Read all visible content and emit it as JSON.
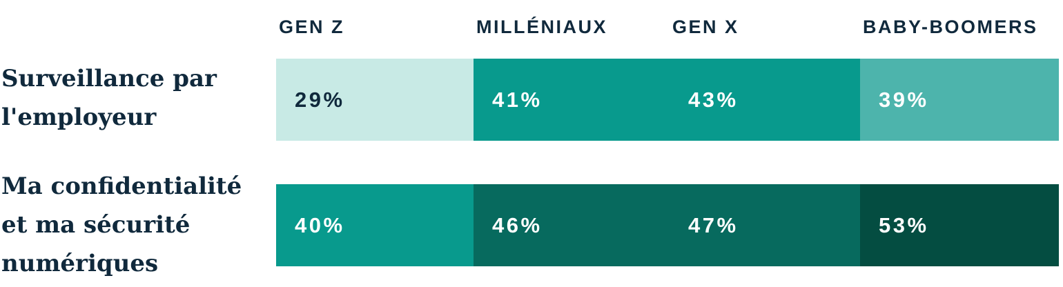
{
  "colors": {
    "background": "#ffffff",
    "text_navy": "#10293c",
    "mint": "#c8eae5",
    "teal": "#089a8d",
    "seafoam": "#4db4ac",
    "dark_teal": "#076a5e",
    "darkest_teal": "#044d41",
    "value_light": "#ffffff"
  },
  "header": {
    "columns": [
      "GEN Z",
      "MILLÉNIAUX",
      "GEN X",
      "BABY-BOOMERS"
    ]
  },
  "rows": [
    {
      "label": "Surveillance par l'employeur",
      "label_lines": [
        "Surveillance par",
        "l'employeur"
      ],
      "cells": [
        {
          "value": "29%",
          "bg": "#c8eae5",
          "fg": "#10293c"
        },
        {
          "value": "41%",
          "bg": "#089a8d",
          "fg": "#ffffff"
        },
        {
          "value": "43%",
          "bg": "#089a8d",
          "fg": "#ffffff"
        },
        {
          "value": "39%",
          "bg": "#4db4ac",
          "fg": "#ffffff"
        }
      ]
    },
    {
      "label": "Ma confidentialité et ma sécurité numériques",
      "label_lines": [
        "Ma confidentialité",
        "et ma sécurité",
        "numériques"
      ],
      "cells": [
        {
          "value": "40%",
          "bg": "#089a8d",
          "fg": "#ffffff"
        },
        {
          "value": "46%",
          "bg": "#076a5e",
          "fg": "#ffffff"
        },
        {
          "value": "47%",
          "bg": "#076a5e",
          "fg": "#ffffff"
        },
        {
          "value": "53%",
          "bg": "#044d41",
          "fg": "#ffffff"
        }
      ]
    }
  ],
  "chart_data": {
    "type": "heatmap",
    "categories": [
      "GEN Z",
      "MILLÉNIAUX",
      "GEN X",
      "BABY-BOOMERS"
    ],
    "series": [
      {
        "name": "Surveillance par l'employeur",
        "values": [
          29,
          41,
          43,
          39
        ]
      },
      {
        "name": "Ma confidentialité et ma sécurité numériques",
        "values": [
          40,
          46,
          47,
          53
        ]
      }
    ],
    "unit": "%",
    "title": "",
    "xlabel": "",
    "ylabel": "",
    "legend_position": "none",
    "grid": false,
    "value_labels_shown": true,
    "color_scale_note": "darker cell = higher percentage; 29% lightest mint, 53% darkest green"
  }
}
